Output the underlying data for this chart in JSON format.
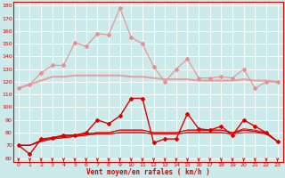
{
  "x": [
    0,
    1,
    2,
    3,
    4,
    5,
    6,
    7,
    8,
    9,
    10,
    11,
    12,
    13,
    14,
    15,
    16,
    17,
    18,
    19,
    20,
    21,
    22,
    23
  ],
  "series_rafales_upper": [
    115,
    118,
    127,
    133,
    133,
    151,
    148,
    158,
    157,
    178,
    155,
    150,
    132,
    120,
    130,
    138,
    123,
    123,
    124,
    123,
    130,
    115,
    120,
    120
  ],
  "series_pink_mean": [
    115,
    118,
    121,
    124,
    124,
    125,
    125,
    125,
    125,
    125,
    124,
    124,
    123,
    122,
    122,
    122,
    121,
    121,
    121,
    121,
    122,
    121,
    121,
    120
  ],
  "series_red_gust": [
    70,
    63,
    75,
    76,
    78,
    78,
    80,
    90,
    87,
    93,
    107,
    107,
    72,
    75,
    75,
    95,
    83,
    82,
    85,
    78,
    90,
    85,
    80,
    73
  ],
  "series_red_mean1": [
    70,
    70,
    73,
    75,
    76,
    77,
    78,
    79,
    79,
    80,
    80,
    80,
    79,
    79,
    79,
    80,
    80,
    80,
    80,
    79,
    80,
    80,
    79,
    73
  ],
  "series_red_mean2": [
    70,
    70,
    73,
    75,
    76,
    77,
    78,
    79,
    79,
    80,
    80,
    80,
    79,
    79,
    79,
    80,
    80,
    80,
    80,
    79,
    82,
    81,
    80,
    73
  ],
  "series_red_mean3": [
    70,
    70,
    74,
    76,
    77,
    78,
    79,
    80,
    80,
    82,
    82,
    82,
    80,
    80,
    80,
    82,
    82,
    82,
    82,
    80,
    83,
    82,
    80,
    73
  ],
  "series_red_mean4": [
    70,
    70,
    74,
    76,
    77,
    78,
    79,
    80,
    80,
    82,
    82,
    82,
    80,
    80,
    80,
    82,
    82,
    82,
    82,
    80,
    82,
    81,
    79,
    73
  ],
  "background_color": "#cceaea",
  "grid_color": "#ffffff",
  "line_color_light": "#e89090",
  "line_color_red": "#dd0000",
  "xlabel": "Vent moyen/en rafales ( km/h )",
  "ylim": [
    57,
    183
  ],
  "xlim": [
    -0.5,
    23.5
  ],
  "yticks": [
    60,
    70,
    80,
    90,
    100,
    110,
    120,
    130,
    140,
    150,
    160,
    170,
    180
  ],
  "xticks": [
    0,
    1,
    2,
    3,
    4,
    5,
    6,
    7,
    8,
    9,
    10,
    11,
    12,
    13,
    14,
    15,
    16,
    17,
    18,
    19,
    20,
    21,
    22,
    23
  ]
}
